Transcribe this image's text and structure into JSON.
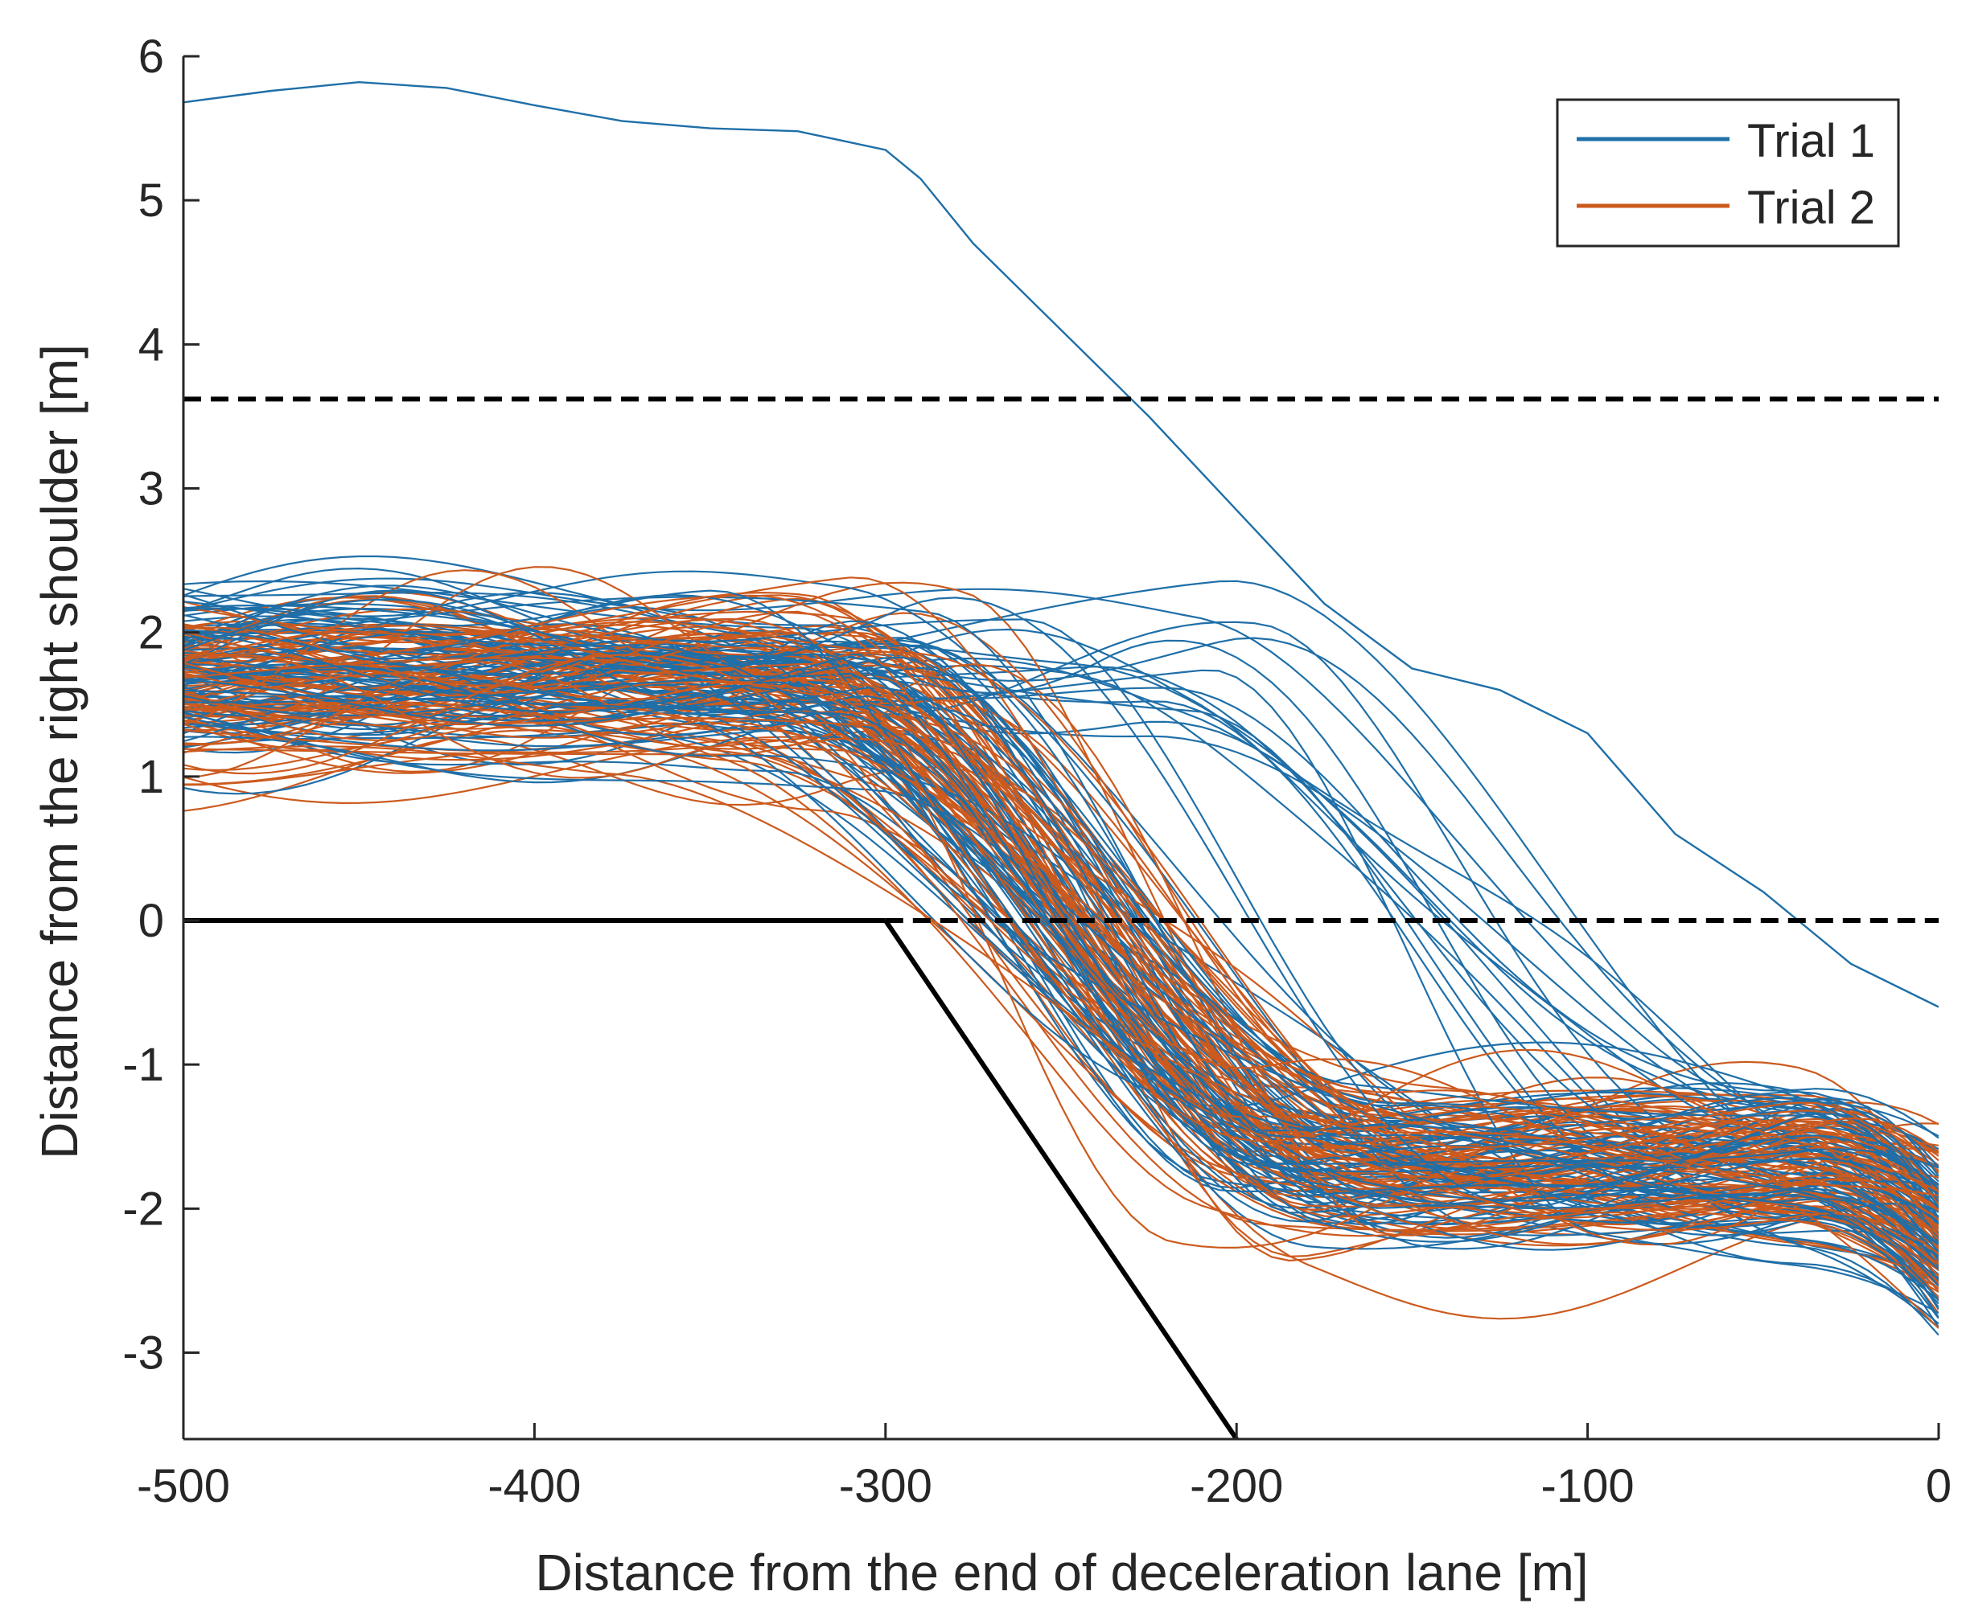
{
  "chart_data": {
    "type": "line",
    "title": "",
    "xlabel": "Distance from the end of deceleration lane [m]",
    "ylabel": "Distance from the right shoulder [m]",
    "xlim": [
      -500,
      0
    ],
    "ylim": [
      -3.6,
      6
    ],
    "xticks": [
      -500,
      -400,
      -300,
      -200,
      -100,
      0
    ],
    "xtick_labels": [
      "-500",
      "-400",
      "-300",
      "-200",
      "-100",
      "0"
    ],
    "yticks": [
      -3,
      -2,
      -1,
      0,
      1,
      2,
      3,
      4,
      5,
      6
    ],
    "ytick_labels": [
      "-3",
      "-2",
      "-1",
      "0",
      "1",
      "2",
      "3",
      "4",
      "5",
      "6"
    ],
    "grid": false,
    "legend": {
      "position": "top-right",
      "entries": [
        {
          "name": "Trial 1",
          "color": "#1f6fa8"
        },
        {
          "name": "Trial 2",
          "color": "#cc5a1e"
        }
      ]
    },
    "reference_lines": [
      {
        "name": "lane-edge-upper",
        "style": "dashed",
        "color": "#000000",
        "x": [
          -500,
          0
        ],
        "y": [
          3.62,
          3.62
        ]
      },
      {
        "name": "shoulder-solid",
        "style": "solid",
        "color": "#000000",
        "x": [
          -500,
          -300
        ],
        "y": [
          0,
          0
        ]
      },
      {
        "name": "shoulder-dashed",
        "style": "dashed",
        "color": "#000000",
        "x": [
          -300,
          0
        ],
        "y": [
          0,
          0
        ]
      },
      {
        "name": "taper",
        "style": "solid",
        "color": "#000000",
        "x": [
          -300,
          -200
        ],
        "y": [
          0,
          -3.6
        ]
      }
    ],
    "highlighted_trajectory": {
      "series": "Trial 1",
      "x": [
        -500,
        -475,
        -450,
        -425,
        -400,
        -375,
        -350,
        -325,
        -300,
        -290,
        -275,
        -250,
        -225,
        -200,
        -175,
        -150,
        -125,
        -100,
        -75,
        -50,
        -25,
        0
      ],
      "y": [
        5.68,
        5.76,
        5.82,
        5.78,
        5.66,
        5.55,
        5.5,
        5.48,
        5.35,
        5.15,
        4.7,
        4.1,
        3.5,
        2.85,
        2.2,
        1.75,
        1.6,
        1.3,
        0.6,
        0.2,
        -0.3,
        -0.6
      ]
    },
    "series_summary": [
      {
        "name": "Trial 1",
        "color": "#1f6fa8",
        "trajectory_count": 90,
        "mean_profile_x": [
          -500,
          -400,
          -300,
          -280,
          -260,
          -240,
          -220,
          -200,
          -150,
          -100,
          -50,
          0
        ],
        "mean_profile_y": [
          1.65,
          1.75,
          1.65,
          1.4,
          0.9,
          0.2,
          -0.5,
          -1.1,
          -1.45,
          -1.55,
          -1.65,
          -1.95
        ]
      },
      {
        "name": "Trial 2",
        "color": "#cc5a1e",
        "trajectory_count": 90,
        "mean_profile_x": [
          -500,
          -400,
          -300,
          -280,
          -260,
          -240,
          -220,
          -200,
          -150,
          -100,
          -50,
          0
        ],
        "mean_profile_y": [
          1.7,
          1.75,
          1.7,
          1.45,
          0.95,
          0.25,
          -0.45,
          -1.05,
          -1.45,
          -1.55,
          -1.65,
          -2.0
        ]
      }
    ]
  }
}
